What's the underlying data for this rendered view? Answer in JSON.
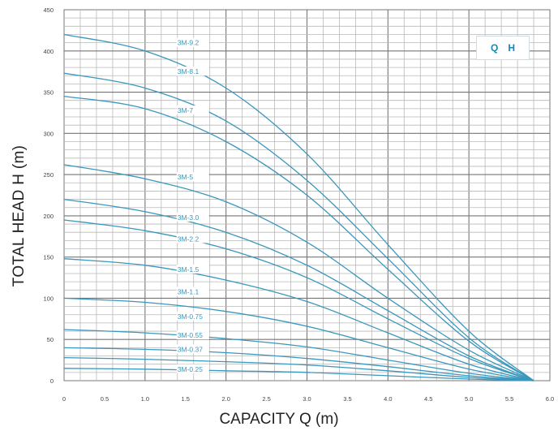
{
  "chart_data": {
    "type": "line",
    "xlabel": "CAPACITY Q (m)",
    "ylabel": "TOTAL HEAD H (m)",
    "legend": [
      "Q",
      "H"
    ],
    "legend_position": "top-right",
    "grid": true,
    "xlim": [
      0,
      6
    ],
    "ylim": [
      0,
      450
    ],
    "x_ticks": [
      "0",
      "0.5",
      "1.0",
      "1.5",
      "2.0",
      "2.5",
      "3.0",
      "3.5",
      "4.0",
      "4.5",
      "5.0",
      "5.5",
      "6.0"
    ],
    "y_ticks": [
      "0",
      "50",
      "100",
      "150",
      "200",
      "250",
      "300",
      "350",
      "400",
      "450"
    ],
    "series_color": "#3a97bd",
    "series": [
      {
        "name": "3M-9.2",
        "x": [
          0,
          1.0,
          2.0,
          3.0,
          4.0,
          5.0,
          5.8
        ],
        "y": [
          420,
          400,
          355,
          275,
          165,
          60,
          0
        ]
      },
      {
        "name": "3M-8.1",
        "x": [
          0,
          1.0,
          2.0,
          3.0,
          4.0,
          5.0,
          5.8
        ],
        "y": [
          373,
          355,
          315,
          243,
          148,
          52,
          0
        ]
      },
      {
        "name": "3M-7",
        "x": [
          0,
          1.0,
          2.0,
          3.0,
          4.0,
          5.0,
          5.8
        ],
        "y": [
          345,
          330,
          290,
          225,
          135,
          48,
          0
        ]
      },
      {
        "name": "3M-5",
        "x": [
          0,
          1.0,
          2.0,
          3.0,
          4.0,
          5.0,
          5.8
        ],
        "y": [
          262,
          245,
          217,
          168,
          100,
          37,
          0
        ]
      },
      {
        "name": "3M-3.0",
        "x": [
          0,
          1.0,
          2.0,
          3.0,
          4.0,
          5.0,
          5.8
        ],
        "y": [
          220,
          205,
          180,
          140,
          85,
          30,
          0
        ]
      },
      {
        "name": "3M-2.2",
        "x": [
          0,
          1.0,
          2.0,
          3.0,
          4.0,
          5.0,
          5.8
        ],
        "y": [
          195,
          182,
          160,
          125,
          75,
          27,
          0
        ]
      },
      {
        "name": "3M-1.5",
        "x": [
          0,
          1.0,
          2.0,
          3.0,
          4.0,
          5.0,
          5.8
        ],
        "y": [
          148,
          140,
          122,
          96,
          58,
          20,
          0
        ]
      },
      {
        "name": "3M-1.1",
        "x": [
          0,
          1.0,
          2.0,
          3.0,
          4.0,
          5.0,
          5.8
        ],
        "y": [
          100,
          95,
          84,
          66,
          40,
          14,
          0
        ]
      },
      {
        "name": "3M-0.75",
        "x": [
          0,
          1.0,
          2.0,
          3.0,
          4.0,
          5.0,
          5.8
        ],
        "y": [
          62,
          58,
          51,
          41,
          25,
          9,
          0
        ]
      },
      {
        "name": "3M-0.55",
        "x": [
          0,
          1.0,
          2.0,
          3.0,
          4.0,
          5.0,
          5.8
        ],
        "y": [
          40,
          38,
          34,
          27,
          17,
          6,
          0
        ]
      },
      {
        "name": "3M-0.37",
        "x": [
          0,
          1.0,
          2.0,
          3.0,
          4.0,
          5.0,
          5.8
        ],
        "y": [
          28,
          26,
          23,
          19,
          12,
          4,
          0
        ]
      },
      {
        "name": "3M-0.25",
        "x": [
          0,
          1.0,
          2.0,
          3.0,
          4.0,
          5.0,
          5.8
        ],
        "y": [
          15,
          14,
          12,
          10,
          6,
          2,
          0
        ]
      }
    ],
    "curve_labels": [
      {
        "text": "3M-9.2",
        "x": 1.4,
        "y": 410
      },
      {
        "text": "3M-8.1",
        "x": 1.4,
        "y": 375
      },
      {
        "text": "3M-7",
        "x": 1.4,
        "y": 328
      },
      {
        "text": "3M-5",
        "x": 1.4,
        "y": 247
      },
      {
        "text": "3M-3.0",
        "x": 1.4,
        "y": 198
      },
      {
        "text": "3M-2.2",
        "x": 1.4,
        "y": 172
      },
      {
        "text": "3M-1.5",
        "x": 1.4,
        "y": 135
      },
      {
        "text": "3M-1.1",
        "x": 1.4,
        "y": 108
      },
      {
        "text": "3M-0.75",
        "x": 1.4,
        "y": 78
      },
      {
        "text": "3M-0.55",
        "x": 1.4,
        "y": 55
      },
      {
        "text": "3M-0.37",
        "x": 1.4,
        "y": 38
      },
      {
        "text": "3M-0.25",
        "x": 1.4,
        "y": 14
      }
    ]
  }
}
